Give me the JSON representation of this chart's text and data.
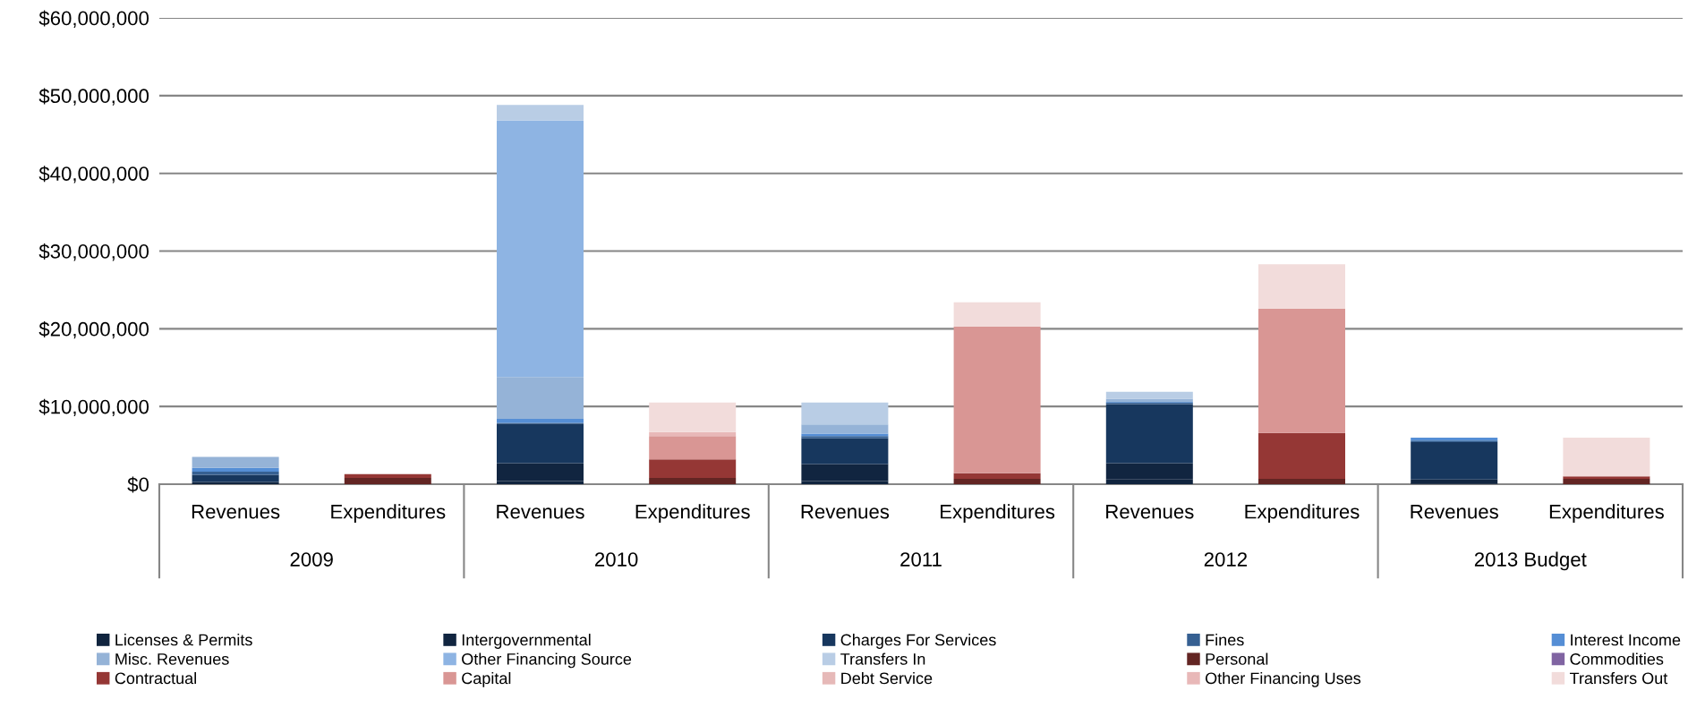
{
  "chart_data": {
    "type": "bar",
    "stacked": true,
    "categories": [
      "Revenues",
      "Expenditures",
      "Revenues",
      "Expenditures",
      "Revenues",
      "Expenditures",
      "Revenues",
      "Expenditures",
      "Revenues",
      "Expenditures"
    ],
    "annotations": [
      "2009",
      "2010",
      "2011",
      "2012",
      "2013 Budget"
    ],
    "ylim": [
      0,
      60000000
    ],
    "yticks": [
      {
        "value": 0,
        "label": "$0"
      },
      {
        "value": 10000000,
        "label": "$10,000,000"
      },
      {
        "value": 20000000,
        "label": "$20,000,000"
      },
      {
        "value": 30000000,
        "label": "$30,000,000"
      },
      {
        "value": 40000000,
        "label": "$40,000,000"
      },
      {
        "value": 50000000,
        "label": "$50,000,000"
      },
      {
        "value": 60000000,
        "label": "$60,000,000"
      }
    ],
    "grid": "y",
    "legend": "bottom",
    "series": [
      {
        "name": "Licenses & Permits",
        "color": "#10243e",
        "values": [
          300000,
          0,
          400000,
          0,
          400000,
          0,
          600000,
          0,
          100000,
          0
        ]
      },
      {
        "name": "Intergovernmental",
        "color": "#112540",
        "values": [
          null,
          0,
          2300000,
          0,
          2200000,
          0,
          2100000,
          0,
          500000,
          0
        ]
      },
      {
        "name": "Charges For Services",
        "color": "#17375e",
        "values": [
          900000,
          0,
          5100000,
          0,
          3300000,
          0,
          7600000,
          0,
          4800000,
          0
        ]
      },
      {
        "name": "Fines",
        "color": "#366092",
        "values": [
          400000,
          0,
          100000,
          0,
          300000,
          0,
          200000,
          0,
          200000,
          0
        ]
      },
      {
        "name": "Interest Income",
        "color": "#558ed5",
        "values": [
          500000,
          0,
          500000,
          0,
          300000,
          0,
          100000,
          0,
          400000,
          0
        ]
      },
      {
        "name": "Misc. Revenues",
        "color": "#95b3d7",
        "values": [
          1400000,
          0,
          5400000,
          0,
          1200000,
          0,
          400000,
          0,
          0,
          0
        ]
      },
      {
        "name": "Other Financing Source",
        "color": "#8eb4e3",
        "values": [
          0,
          0,
          33000000,
          0,
          0,
          0,
          0,
          0,
          0,
          0
        ]
      },
      {
        "name": "Transfers In",
        "color": "#b9cde5",
        "values": [
          null,
          0,
          2000000,
          0,
          2800000,
          0,
          900000,
          0,
          0,
          0
        ]
      },
      {
        "name": "Personal",
        "color": "#632523",
        "values": [
          0,
          800000,
          0,
          800000,
          0,
          700000,
          0,
          700000,
          0,
          700000
        ]
      },
      {
        "name": "Commodities",
        "color": "#8064a2",
        "values": [
          0,
          0,
          0,
          0,
          0,
          0,
          0,
          0,
          0,
          0
        ]
      },
      {
        "name": "Contractual",
        "color": "#953735",
        "values": [
          0,
          500000,
          0,
          2400000,
          0,
          700000,
          0,
          5900000,
          0,
          300000
        ]
      },
      {
        "name": "Capital",
        "color": "#d99694",
        "values": [
          0,
          0,
          0,
          3000000,
          0,
          18900000,
          0,
          16000000,
          0,
          0
        ]
      },
      {
        "name": "Debt Service",
        "color": "#e6b9b8",
        "values": [
          0,
          0,
          0,
          0,
          0,
          0,
          0,
          0,
          0,
          0
        ]
      },
      {
        "name": "Other Financing Uses",
        "color": "#e8b8b8",
        "values": [
          0,
          0,
          0,
          500000,
          0,
          0,
          0,
          0,
          0,
          0
        ]
      },
      {
        "name": "Transfers Out",
        "color": "#f2dcdb",
        "values": [
          0,
          0,
          0,
          3800000,
          0,
          3100000,
          0,
          5700000,
          0,
          5000000
        ]
      }
    ]
  }
}
